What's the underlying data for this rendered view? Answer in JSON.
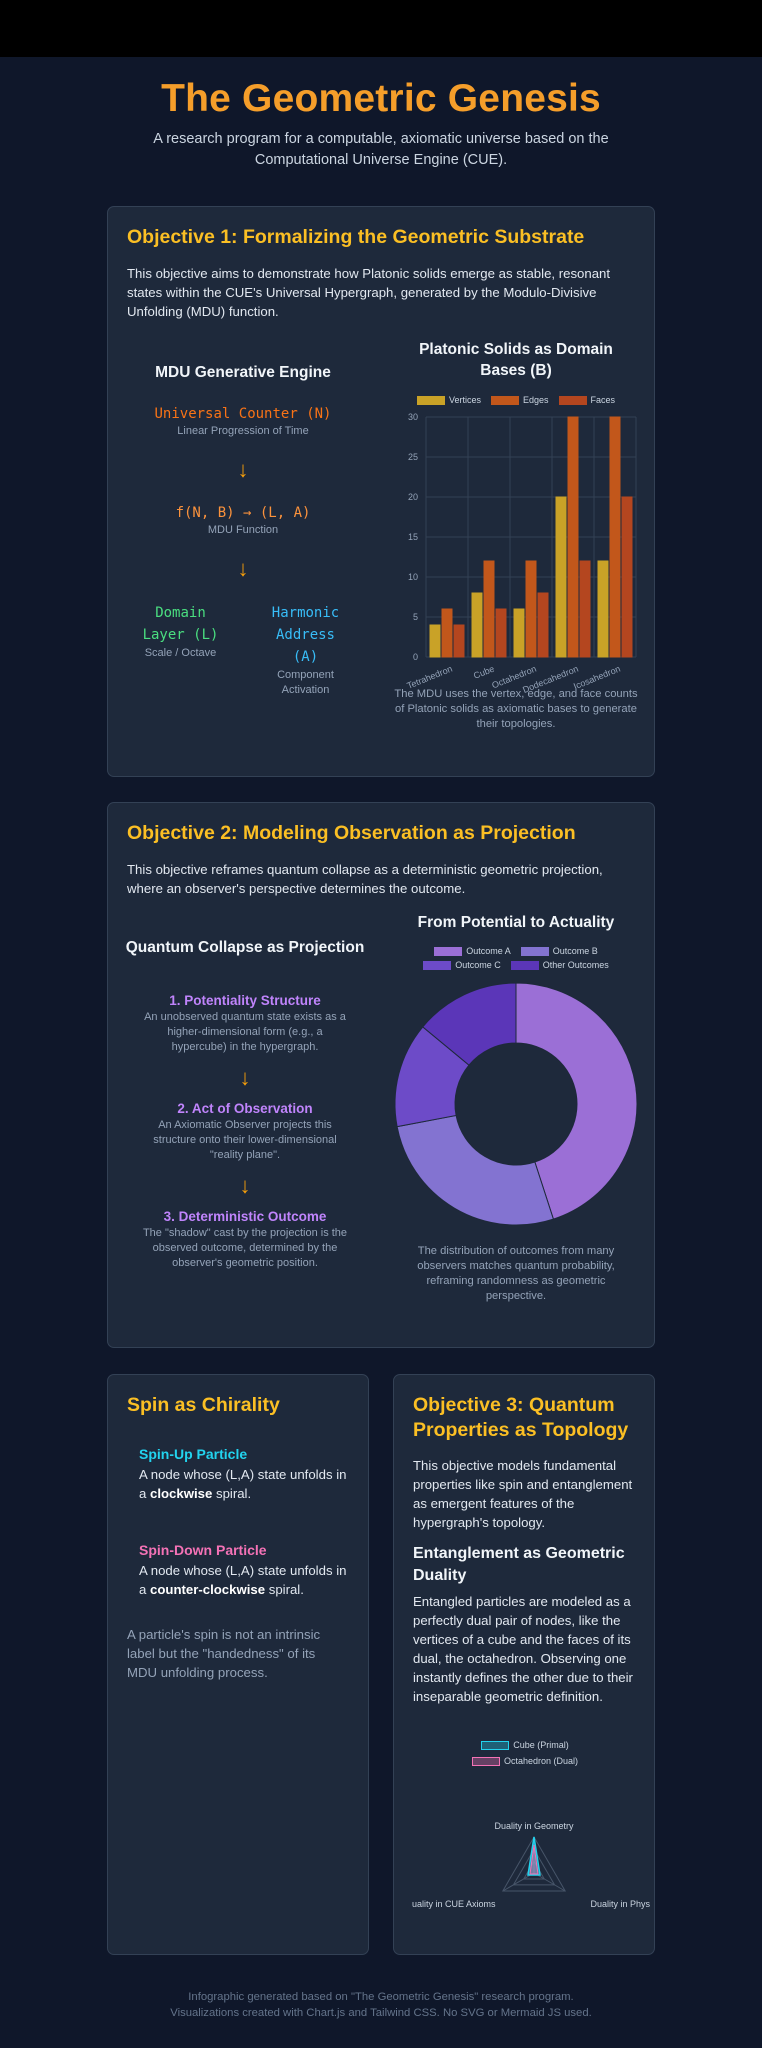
{
  "header": {
    "title": "The Geometric Genesis",
    "subtitle": "A research program for a computable, axiomatic universe based on the Computational Universe Engine (CUE)."
  },
  "objective1": {
    "title": "Objective 1: Formalizing the Geometric Substrate",
    "intro": "This objective aims to demonstrate how Platonic solids emerge as stable, resonant states within the CUE's Universal Hypergraph, generated by the Modulo-Divisive Unfolding (MDU) function.",
    "engine": {
      "title": "MDU Generative Engine",
      "counter": "Universal Counter (N)",
      "counter_caption": "Linear Progression of Time",
      "arrow": "↓",
      "function": "f(N, B) → (L, A)",
      "function_caption": "MDU Function",
      "domain_label": "Domain Layer (L)",
      "domain_caption": "Scale / Octave",
      "harmonic_label": "Harmonic Address (A)",
      "harmonic_caption": "Component Activation"
    },
    "chart_title": "Platonic Solids as Domain Bases (B)",
    "chart_caption": "The MDU uses the vertex, edge, and face counts of Platonic solids as axiomatic bases to generate their topologies."
  },
  "objective2": {
    "title": "Objective 2: Modeling Observation as Projection",
    "intro": "This objective reframes quantum collapse as a deterministic geometric projection, where an observer's perspective determines the outcome.",
    "flow_title": "Quantum Collapse as Projection",
    "steps": [
      {
        "title": "1. Potentiality Structure",
        "text": "An unobserved quantum state exists as a higher-dimensional form (e.g., a hypercube) in the hypergraph."
      },
      {
        "title": "2. Act of Observation",
        "text": "An Axiomatic Observer projects this structure onto their lower-dimensional \"reality plane\"."
      },
      {
        "title": "3. Deterministic Outcome",
        "text": "The \"shadow\" cast by the projection is the observed outcome, determined by the observer's geometric position."
      }
    ],
    "arrow": "↓",
    "chart_title": "From Potential to Actuality",
    "chart_caption": "The distribution of outcomes from many observers matches quantum probability, reframing randomness as geometric perspective."
  },
  "spin": {
    "title": "Spin as Chirality",
    "up_title": "Spin-Up Particle",
    "up_text_pre": "A node whose (L,A) state unfolds in a ",
    "up_text_bold": "clockwise",
    "up_text_post": " spiral.",
    "down_title": "Spin-Down Particle",
    "down_text_pre": "A node whose (L,A) state unfolds in a ",
    "down_text_bold": "counter-clockwise",
    "down_text_post": " spiral.",
    "note": "A particle's spin is not an intrinsic label but the \"handedness\" of its MDU unfolding process."
  },
  "objective3": {
    "title": "Objective 3: Quantum Properties as Topology",
    "intro": "This objective models fundamental properties like spin and entanglement as emergent features of the hypergraph's topology.",
    "sub_title": "Entanglement as Geometric Duality",
    "sub_text": "Entangled particles are modeled as a perfectly dual pair of nodes, like the vertices of a cube and the faces of its dual, the octahedron. Observing one instantly defines the other due to their inseparable geometric definition."
  },
  "footer": {
    "line1": "Infographic generated based on \"The Geometric Genesis\" research program.",
    "line2": "Visualizations created with Chart.js and Tailwind CSS. No SVG or Mermaid JS used."
  },
  "chart_data": [
    {
      "type": "bar",
      "categories": [
        "Tetrahedron",
        "Cube",
        "Octahedron",
        "Dodecahedron",
        "Icosahedron"
      ],
      "series": [
        {
          "name": "Vertices",
          "values": [
            4,
            8,
            6,
            20,
            12
          ],
          "color": "#c9a227"
        },
        {
          "name": "Edges",
          "values": [
            6,
            12,
            12,
            30,
            30
          ],
          "color": "#c2571b"
        },
        {
          "name": "Faces",
          "values": [
            4,
            6,
            8,
            12,
            20
          ],
          "color": "#b4461f"
        }
      ],
      "ylim": [
        0,
        30
      ],
      "yticks": [
        0,
        5,
        10,
        15,
        20,
        25,
        30
      ],
      "legend": "top",
      "grid": true
    },
    {
      "type": "pie",
      "donut": true,
      "labels": [
        "Outcome A",
        "Outcome B",
        "Outcome C",
        "Other Outcomes"
      ],
      "values": [
        45,
        27,
        14,
        14
      ],
      "colors": [
        "#9b6fd6",
        "#8373d1",
        "#6d4bc8",
        "#5b36b8"
      ],
      "legend": "top"
    },
    {
      "type": "radar",
      "labels": [
        "Duality in Geometry",
        "Duality in Phys",
        "uality in CUE Axioms"
      ],
      "series": [
        {
          "name": "Cube (Primal)",
          "color": "#22d3ee"
        },
        {
          "name": "Octahedron (Dual)",
          "color": "#f472b6"
        }
      ],
      "legend": "top"
    }
  ]
}
